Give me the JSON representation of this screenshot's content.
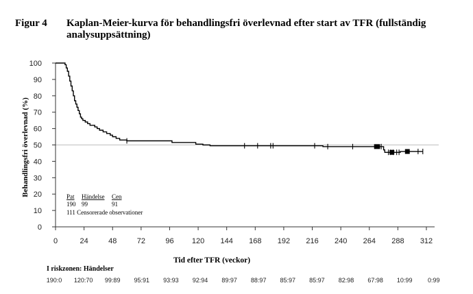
{
  "figure": {
    "label": "Figur 4",
    "title": "Kaplan-Meier-kurva för behandlingsfri överlevnad efter start av TFR (fullständig analysuppsättning)"
  },
  "chart_data": {
    "type": "line",
    "title": "Kaplan-Meier-kurva för behandlingsfri överlevnad efter start av TFR (fullständig analysuppsättning)",
    "xlabel": "Tid efter TFR (veckor)",
    "ylabel": "Behandlingsfri överlevnad (%)",
    "xlim": [
      0,
      312
    ],
    "ylim": [
      0,
      100
    ],
    "xticks": [
      0,
      24,
      48,
      72,
      96,
      120,
      144,
      168,
      192,
      216,
      240,
      264,
      288,
      312
    ],
    "yticks": [
      0,
      10,
      20,
      30,
      40,
      50,
      60,
      70,
      80,
      90,
      100
    ],
    "reference_line": {
      "y": 50,
      "color": "#c8c8c8"
    },
    "series": [
      {
        "name": "",
        "color": "#000000",
        "points": [
          [
            0,
            100
          ],
          [
            6,
            100
          ],
          [
            8,
            100
          ],
          [
            8,
            99
          ],
          [
            9,
            99
          ],
          [
            9,
            97
          ],
          [
            10,
            97
          ],
          [
            10,
            95
          ],
          [
            11,
            95
          ],
          [
            11,
            92
          ],
          [
            12,
            92
          ],
          [
            12,
            89
          ],
          [
            13,
            89
          ],
          [
            13,
            86
          ],
          [
            14,
            86
          ],
          [
            14,
            83
          ],
          [
            15,
            83
          ],
          [
            15,
            80
          ],
          [
            16,
            80
          ],
          [
            16,
            77
          ],
          [
            17,
            77
          ],
          [
            17,
            75
          ],
          [
            18,
            75
          ],
          [
            18,
            73
          ],
          [
            19,
            73
          ],
          [
            19,
            71
          ],
          [
            20,
            71
          ],
          [
            20,
            69
          ],
          [
            21,
            69
          ],
          [
            21,
            67
          ],
          [
            22,
            67
          ],
          [
            22,
            66
          ],
          [
            23,
            66
          ],
          [
            23,
            65
          ],
          [
            25,
            65
          ],
          [
            25,
            64
          ],
          [
            27,
            64
          ],
          [
            27,
            63
          ],
          [
            29,
            63
          ],
          [
            29,
            62
          ],
          [
            33,
            62
          ],
          [
            33,
            61
          ],
          [
            35,
            61
          ],
          [
            35,
            60
          ],
          [
            37,
            60
          ],
          [
            37,
            59
          ],
          [
            40,
            59
          ],
          [
            40,
            58
          ],
          [
            43,
            58
          ],
          [
            43,
            57
          ],
          [
            46,
            57
          ],
          [
            46,
            56
          ],
          [
            48,
            56
          ],
          [
            48,
            55
          ],
          [
            51,
            55
          ],
          [
            51,
            54
          ],
          [
            54,
            54
          ],
          [
            54,
            53
          ],
          [
            60,
            53
          ],
          [
            60,
            52.5
          ],
          [
            98,
            52.5
          ],
          [
            98,
            51.5
          ],
          [
            118,
            51.5
          ],
          [
            118,
            50.5
          ],
          [
            124,
            50.5
          ],
          [
            124,
            50
          ],
          [
            130,
            50
          ],
          [
            130,
            49.5
          ],
          [
            225,
            49.5
          ],
          [
            225,
            49
          ],
          [
            270,
            49
          ],
          [
            276,
            49
          ],
          [
            276,
            47
          ],
          [
            277,
            47
          ],
          [
            277,
            45.5
          ],
          [
            290,
            45.5
          ],
          [
            290,
            46
          ],
          [
            302,
            46
          ],
          [
            309,
            46
          ]
        ],
        "censored": [
          60,
          159,
          170,
          181,
          183,
          218,
          229,
          250,
          274,
          280,
          282,
          284,
          287,
          289,
          305,
          309
        ],
        "censored_blocks": [
          {
            "x0": 268,
            "x1": 273
          },
          {
            "x0": 281,
            "x1": 285
          },
          {
            "x0": 294,
            "x1": 298
          }
        ]
      }
    ],
    "legend_box": {
      "header": [
        "Pat",
        "Händelse",
        "Cen"
      ],
      "row": [
        "190",
        "99",
        "91"
      ],
      "note": "111  Censorerade observationer"
    },
    "risk_table": {
      "title": "I riskzonen: Händelser",
      "values": [
        "190:0",
        "120:70",
        "99:89",
        "95:91",
        "93:93",
        "92:94",
        "89:97",
        "88:97",
        "85:97",
        "85:97",
        "82:98",
        "67:98",
        "10:99",
        "0:99"
      ]
    }
  }
}
